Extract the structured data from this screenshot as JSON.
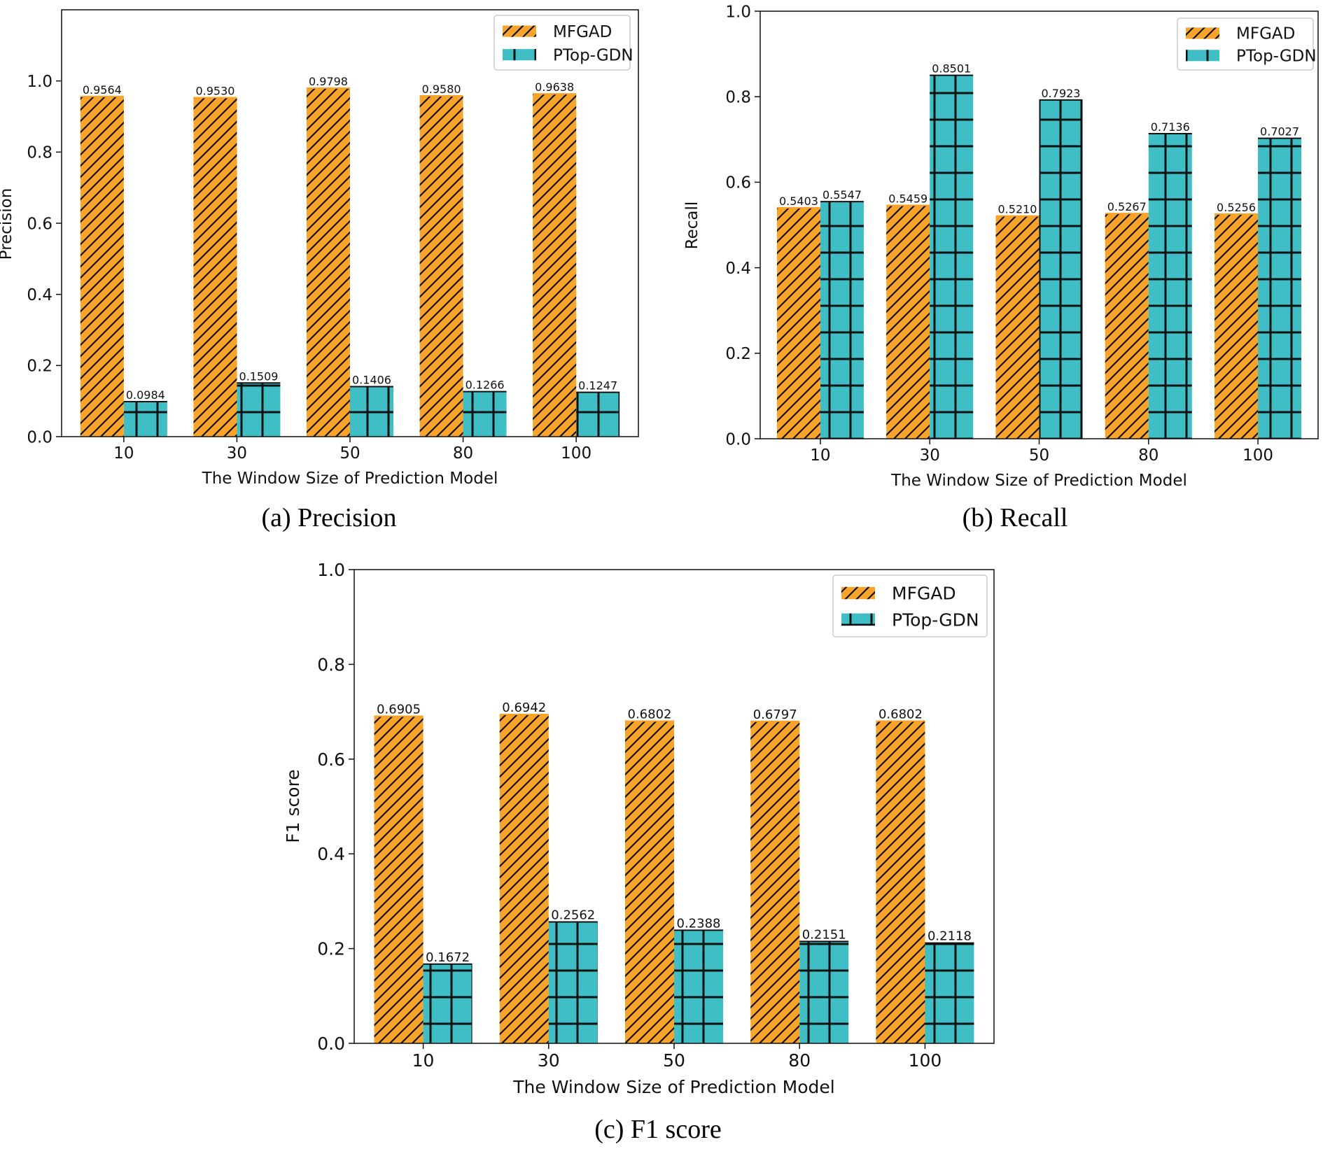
{
  "colors": {
    "mfgad": "#f8a42b",
    "ptop": "#3fbfc5",
    "hatch": "#111111"
  },
  "chart_data": [
    {
      "type": "bar",
      "caption": "(a) Precision",
      "categories": [
        "10",
        "30",
        "50",
        "80",
        "100"
      ],
      "xlabel": "The Window Size of Prediction Model",
      "ylabel": "Precision",
      "ylim": [
        0,
        1.2
      ],
      "yticks": [
        "0.0",
        "0.2",
        "0.4",
        "0.6",
        "0.8",
        "1.0"
      ],
      "legend_position": "top-right",
      "series": [
        {
          "name": "MFGAD",
          "values": [
            0.9564,
            0.953,
            0.9798,
            0.958,
            0.9638
          ],
          "labels": [
            "0.9564",
            "0.9530",
            "0.9798",
            "0.9580",
            "0.9638"
          ]
        },
        {
          "name": "PTop-GDN",
          "values": [
            0.0984,
            0.1509,
            0.1406,
            0.1266,
            0.1247
          ],
          "labels": [
            "0.0984",
            "0.1509",
            "0.1406",
            "0.1266",
            "0.1247"
          ]
        }
      ]
    },
    {
      "type": "bar",
      "caption": "(b) Recall",
      "categories": [
        "10",
        "30",
        "50",
        "80",
        "100"
      ],
      "xlabel": "The Window Size of Prediction Model",
      "ylabel": "Recall",
      "ylim": [
        0,
        1.0
      ],
      "yticks": [
        "0.0",
        "0.2",
        "0.4",
        "0.6",
        "0.8",
        "1.0"
      ],
      "legend_position": "top-right",
      "series": [
        {
          "name": "MFGAD",
          "values": [
            0.5403,
            0.5459,
            0.521,
            0.5267,
            0.5256
          ],
          "labels": [
            "0.5403",
            "0.5459",
            "0.5210",
            "0.5267",
            "0.5256"
          ]
        },
        {
          "name": "PTop-GDN",
          "values": [
            0.5547,
            0.8501,
            0.7923,
            0.7136,
            0.7027
          ],
          "labels": [
            "0.5547",
            "0.8501",
            "0.7923",
            "0.7136",
            "0.7027"
          ]
        }
      ]
    },
    {
      "type": "bar",
      "caption": "(c) F1 score",
      "categories": [
        "10",
        "30",
        "50",
        "80",
        "100"
      ],
      "xlabel": "The Window Size of Prediction Model",
      "ylabel": "F1 score",
      "ylim": [
        0,
        1.0
      ],
      "yticks": [
        "0.0",
        "0.2",
        "0.4",
        "0.6",
        "0.8",
        "1.0"
      ],
      "legend_position": "top-right",
      "series": [
        {
          "name": "MFGAD",
          "values": [
            0.6905,
            0.6942,
            0.6802,
            0.6797,
            0.6802
          ],
          "labels": [
            "0.6905",
            "0.6942",
            "0.6802",
            "0.6797",
            "0.6802"
          ]
        },
        {
          "name": "PTop-GDN",
          "values": [
            0.1672,
            0.2562,
            0.2388,
            0.2151,
            0.2118
          ],
          "labels": [
            "0.1672",
            "0.2562",
            "0.2388",
            "0.2151",
            "0.2118"
          ]
        }
      ]
    }
  ]
}
